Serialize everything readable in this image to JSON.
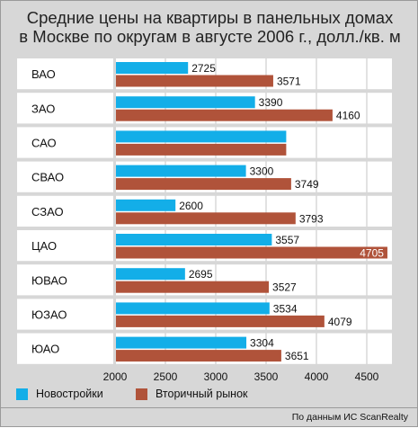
{
  "chart_data": {
    "type": "bar",
    "orientation": "horizontal",
    "title_lines": [
      "Средние цены на квартиры в панельных домах",
      "в Москве по округам в августе 2006 г., долл./кв. м"
    ],
    "categories": [
      "ВАО",
      "ЗАО",
      "САО",
      "СВАО",
      "СЗАО",
      "ЦАО",
      "ЮВАО",
      "ЮЗАО",
      "ЮАО"
    ],
    "series": [
      {
        "name": "Новостройки",
        "color": "#13aee8",
        "values": [
          2725,
          3390,
          3700,
          3300,
          2600,
          3557,
          2695,
          3534,
          3304
        ],
        "labels": [
          "2725",
          "3390",
          "",
          "3300",
          "2600",
          "3557",
          "2695",
          "3534",
          "3304"
        ]
      },
      {
        "name": "Вторичный рынок",
        "color": "#b0533a",
        "values": [
          3571,
          4160,
          3700,
          3749,
          3793,
          4705,
          3527,
          4079,
          3651
        ],
        "labels": [
          "3571",
          "4160",
          "",
          "3749",
          "3793",
          "4705",
          "3527",
          "4079",
          "3651"
        ]
      }
    ],
    "xlim": [
      2000,
      4750
    ],
    "xticks": [
      2000,
      2500,
      3000,
      3500,
      4000,
      4500
    ],
    "xtick_labels": [
      "2000",
      "2500",
      "3000",
      "3500",
      "4000",
      "4500"
    ],
    "grid": true,
    "legend": "bottom",
    "source_note": "По данным ИС ScanRealty"
  }
}
